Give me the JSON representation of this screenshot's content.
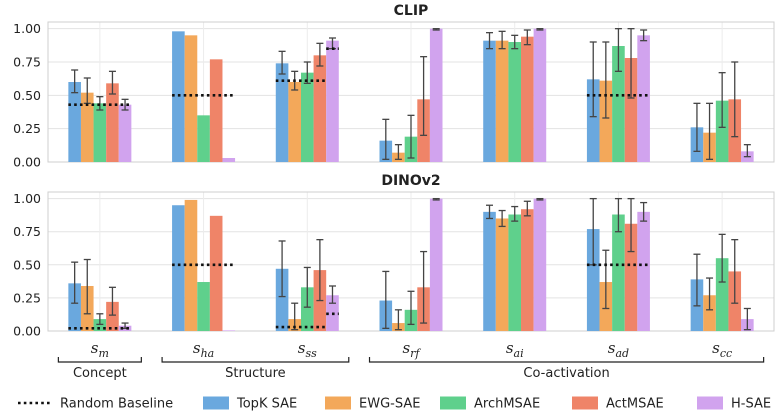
{
  "chart_data": {
    "type": "bar",
    "methods": [
      {
        "name": "TopK SAE",
        "color": "#6aa8de"
      },
      {
        "name": "EWG-SAE",
        "color": "#f3a85a"
      },
      {
        "name": "ArchMSAE",
        "color": "#5fd08c"
      },
      {
        "name": "ActMSAE",
        "color": "#ef8468"
      },
      {
        "name": "H-SAE",
        "color": "#d1a3ee"
      }
    ],
    "baseline_label": "Random Baseline",
    "categories": [
      {
        "main": "s",
        "sub": "m"
      },
      {
        "main": "s",
        "sub": "ha"
      },
      {
        "main": "s",
        "sub": "ss"
      },
      {
        "main": "s",
        "sub": "rf"
      },
      {
        "main": "s",
        "sub": "ai"
      },
      {
        "main": "s",
        "sub": "ad"
      },
      {
        "main": "s",
        "sub": "cc"
      }
    ],
    "groups": [
      {
        "label": "Concept",
        "from": 0,
        "to": 0
      },
      {
        "label": "Structure",
        "from": 1,
        "to": 2
      },
      {
        "label": "Co-activation",
        "from": 3,
        "to": 6
      }
    ],
    "ylim": [
      0,
      1.05
    ],
    "yticks": [
      "0.00",
      "0.25",
      "0.50",
      "0.75",
      "1.00"
    ],
    "grid": true,
    "legend_position": "bottom",
    "panels": [
      {
        "title": "CLIP",
        "values": [
          [
            0.6,
            0.52,
            0.44,
            0.59,
            0.43
          ],
          [
            0.98,
            0.95,
            0.35,
            0.77,
            0.03
          ],
          [
            0.74,
            0.6,
            0.67,
            0.8,
            0.91
          ],
          [
            0.16,
            0.07,
            0.19,
            0.47,
            1.0
          ],
          [
            0.91,
            0.91,
            0.9,
            0.94,
            1.0
          ],
          [
            0.62,
            0.61,
            0.87,
            0.78,
            0.95
          ],
          [
            0.26,
            0.22,
            0.46,
            0.47,
            0.08
          ]
        ],
        "errors": [
          [
            [
              0.52,
              0.69
            ],
            [
              0.44,
              0.63
            ],
            [
              0.39,
              0.49
            ],
            [
              0.51,
              0.68
            ],
            [
              0.39,
              0.47
            ]
          ],
          [
            null,
            null,
            null,
            null,
            null
          ],
          [
            [
              0.66,
              0.83
            ],
            [
              0.54,
              0.68
            ],
            [
              0.59,
              0.75
            ],
            [
              0.72,
              0.89
            ],
            [
              0.85,
              0.93
            ]
          ],
          [
            [
              0.02,
              0.32
            ],
            [
              0.02,
              0.13
            ],
            [
              0.03,
              0.35
            ],
            [
              0.2,
              0.79
            ],
            [
              0.99,
              1.0
            ]
          ],
          [
            [
              0.85,
              0.97
            ],
            [
              0.85,
              0.98
            ],
            [
              0.85,
              0.95
            ],
            [
              0.88,
              0.99
            ],
            [
              0.99,
              1.0
            ]
          ],
          [
            [
              0.34,
              0.9
            ],
            [
              0.33,
              0.9
            ],
            [
              0.68,
              1.0
            ],
            [
              0.48,
              1.0
            ],
            [
              0.91,
              0.99
            ]
          ],
          [
            [
              0.08,
              0.44
            ],
            [
              0.02,
              0.44
            ],
            [
              0.26,
              0.67
            ],
            [
              0.19,
              0.75
            ],
            [
              0.04,
              0.13
            ]
          ]
        ],
        "baselines": [
          [
            0.43
          ],
          [
            0.5
          ],
          [
            0.61,
            0.85
          ],
          [
            null
          ],
          [
            null
          ],
          [
            0.5
          ],
          [
            null
          ]
        ]
      },
      {
        "title": "DINOv2",
        "values": [
          [
            0.36,
            0.34,
            0.09,
            0.22,
            0.04
          ],
          [
            0.95,
            0.99,
            0.37,
            0.87,
            0.0
          ],
          [
            0.47,
            0.09,
            0.33,
            0.46,
            0.27
          ],
          [
            0.23,
            0.06,
            0.16,
            0.33,
            1.0
          ],
          [
            0.9,
            0.85,
            0.88,
            0.92,
            1.0
          ],
          [
            0.77,
            0.37,
            0.88,
            0.81,
            0.9
          ],
          [
            0.39,
            0.27,
            0.55,
            0.45,
            0.09
          ]
        ],
        "errors": [
          [
            [
              0.21,
              0.52
            ],
            [
              0.13,
              0.54
            ],
            [
              0.05,
              0.13
            ],
            [
              0.12,
              0.33
            ],
            [
              0.02,
              0.06
            ]
          ],
          [
            null,
            null,
            null,
            null,
            null
          ],
          [
            [
              0.26,
              0.68
            ],
            [
              0.01,
              0.21
            ],
            [
              0.18,
              0.48
            ],
            [
              0.23,
              0.69
            ],
            [
              0.21,
              0.34
            ]
          ],
          [
            [
              0.02,
              0.45
            ],
            [
              0.01,
              0.16
            ],
            [
              0.05,
              0.3
            ],
            [
              0.06,
              0.6
            ],
            [
              0.99,
              1.0
            ]
          ],
          [
            [
              0.85,
              0.95
            ],
            [
              0.79,
              0.91
            ],
            [
              0.83,
              0.94
            ],
            [
              0.87,
              0.98
            ],
            [
              0.99,
              1.0
            ]
          ],
          [
            [
              0.5,
              1.0
            ],
            [
              0.17,
              0.61
            ],
            [
              0.75,
              1.0
            ],
            [
              0.6,
              1.0
            ],
            [
              0.83,
              0.97
            ]
          ],
          [
            [
              0.19,
              0.58
            ],
            [
              0.16,
              0.4
            ],
            [
              0.37,
              0.73
            ],
            [
              0.21,
              0.69
            ],
            [
              0.01,
              0.17
            ]
          ]
        ],
        "baselines": [
          [
            0.02
          ],
          [
            0.5
          ],
          [
            0.03,
            0.13
          ],
          [
            null
          ],
          [
            null
          ],
          [
            0.5
          ],
          [
            null
          ]
        ]
      }
    ]
  }
}
